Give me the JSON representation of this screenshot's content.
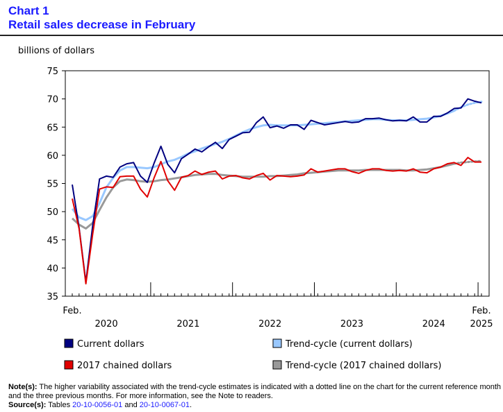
{
  "header": {
    "chart_label": "Chart 1",
    "title": "Retail sales decrease in February"
  },
  "notes": {
    "notes_label": "Note(s):",
    "notes_text": "The higher variability associated with the trend-cycle estimates is indicated with a dotted line on the chart for the current reference month and the three previous months. For more information, see the Note to readers.",
    "source_label": "Source(s):",
    "source_prefix": "Tables",
    "table1": "20-10-0056-01",
    "and_text": "and",
    "table2": "20-10-0067-01",
    "end_text": "."
  },
  "chart_data": {
    "type": "line",
    "ylabel": "billions of dollars",
    "ylim": [
      35,
      75
    ],
    "yticks": [
      35,
      40,
      45,
      50,
      55,
      60,
      65,
      70,
      75
    ],
    "grid": false,
    "legend_position": "bottom",
    "x_start": "2020-02",
    "x_end": "2025-02",
    "xlabels": [
      {
        "month_index": 0,
        "text": "Feb."
      },
      {
        "month_index": 60,
        "text": "Feb."
      },
      {
        "month_index": 5,
        "text": "2020"
      },
      {
        "month_index": 17,
        "text": "2021"
      },
      {
        "month_index": 29,
        "text": "2022"
      },
      {
        "month_index": 41,
        "text": "2023"
      },
      {
        "month_index": 53,
        "text": "2024"
      },
      {
        "month_index": 60,
        "text": "2025"
      }
    ],
    "year_tick_month_indices": [
      11,
      23,
      35,
      47,
      59
    ],
    "series": [
      {
        "name": "Current dollars",
        "color": "#000080",
        "dotted_last": 0,
        "values": [
          54.8,
          47.2,
          37.5,
          47.5,
          55.8,
          56.3,
          56.1,
          57.9,
          58.5,
          58.7,
          56.3,
          55.2,
          58.6,
          61.6,
          58.4,
          56.9,
          59.4,
          60.2,
          61.1,
          60.6,
          61.5,
          62.3,
          61.2,
          62.8,
          63.4,
          64.0,
          64.1,
          65.8,
          66.8,
          64.9,
          65.2,
          64.8,
          65.4,
          65.4,
          64.6,
          66.2,
          65.8,
          65.4,
          65.6,
          65.8,
          66.0,
          65.8,
          65.9,
          66.5,
          66.5,
          66.6,
          66.3,
          66.1,
          66.2,
          66.1,
          66.8,
          65.9,
          65.9,
          66.9,
          66.9,
          67.5,
          68.3,
          68.4,
          70.0,
          69.6,
          69.3
        ]
      },
      {
        "name": "Trend-cycle (current dollars)",
        "color": "#99c8ff",
        "dotted_last": 4,
        "values": [
          50.5,
          49.0,
          48.5,
          49.2,
          51.5,
          54.3,
          56.0,
          57.3,
          57.9,
          57.9,
          57.8,
          57.7,
          57.9,
          58.4,
          58.9,
          59.2,
          59.7,
          60.3,
          60.7,
          61.2,
          61.6,
          62.0,
          62.4,
          62.9,
          63.5,
          64.1,
          64.6,
          65.0,
          65.3,
          65.4,
          65.3,
          65.3,
          65.3,
          65.3,
          65.4,
          65.5,
          65.6,
          65.7,
          65.8,
          65.9,
          66.0,
          66.1,
          66.2,
          66.3,
          66.4,
          66.4,
          66.3,
          66.2,
          66.2,
          66.2,
          66.3,
          66.4,
          66.5,
          66.7,
          67.0,
          67.4,
          67.9,
          68.5,
          69.0,
          69.3,
          69.5
        ]
      },
      {
        "name": "2017 chained dollars",
        "color": "#e00000",
        "dotted_last": 0,
        "values": [
          52.3,
          47.0,
          37.2,
          46.0,
          54.0,
          54.4,
          54.3,
          56.2,
          56.3,
          56.3,
          54.0,
          52.6,
          56.0,
          58.9,
          55.5,
          53.8,
          56.1,
          56.4,
          57.2,
          56.6,
          57.0,
          57.2,
          55.8,
          56.3,
          56.4,
          56.0,
          55.8,
          56.4,
          56.8,
          55.6,
          56.4,
          56.3,
          56.2,
          56.3,
          56.5,
          57.6,
          57.0,
          57.2,
          57.4,
          57.6,
          57.6,
          57.1,
          56.8,
          57.3,
          57.6,
          57.6,
          57.3,
          57.2,
          57.3,
          57.2,
          57.6,
          57.0,
          56.9,
          57.6,
          57.9,
          58.5,
          58.7,
          58.2,
          59.6,
          58.8,
          58.8
        ]
      },
      {
        "name": "Trend-cycle (2017 chained dollars)",
        "color": "#999999",
        "dotted_last": 4,
        "values": [
          48.8,
          47.7,
          47.0,
          48.0,
          50.3,
          52.5,
          54.3,
          55.4,
          55.7,
          55.6,
          55.4,
          55.3,
          55.4,
          55.6,
          55.7,
          55.9,
          56.1,
          56.3,
          56.5,
          56.6,
          56.7,
          56.7,
          56.5,
          56.4,
          56.3,
          56.2,
          56.2,
          56.2,
          56.2,
          56.3,
          56.3,
          56.4,
          56.5,
          56.6,
          56.8,
          56.9,
          57.0,
          57.1,
          57.2,
          57.3,
          57.3,
          57.3,
          57.3,
          57.4,
          57.4,
          57.4,
          57.4,
          57.4,
          57.4,
          57.3,
          57.3,
          57.4,
          57.5,
          57.7,
          57.9,
          58.2,
          58.5,
          58.7,
          58.8,
          58.9,
          59.0
        ]
      }
    ]
  }
}
